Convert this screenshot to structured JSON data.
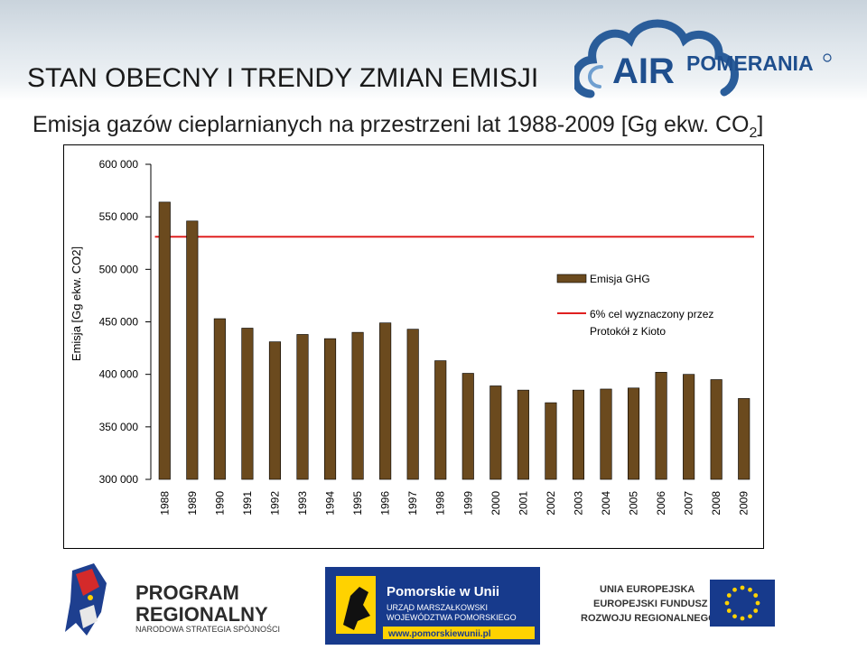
{
  "header": {
    "title": "STAN OBECNY I TRENDY ZMIAN EMISJI",
    "logo_text": "AIRPOMERANIA"
  },
  "subtitle": {
    "main": "Emisja gazów cieplarnianych na przestrzeni lat 1988-2009 [Gg ekw. CO",
    "sub": "2",
    "end": "]"
  },
  "chart_data": {
    "type": "bar",
    "title": "Emisja gazów cieplarnianych na przestrzeni lat 1988-2009 [Gg ekw. CO2]",
    "ylabel": "Emisja [Gg ekw. CO2]",
    "xlabel": "",
    "ylim": [
      300000,
      600000
    ],
    "yticks": [
      300000,
      350000,
      400000,
      450000,
      500000,
      550000,
      600000
    ],
    "ytick_labels": [
      "300 000",
      "350 000",
      "400 000",
      "450 000",
      "500 000",
      "550 000",
      "600 000"
    ],
    "categories": [
      "1988",
      "1989",
      "1990",
      "1991",
      "1992",
      "1993",
      "1994",
      "1995",
      "1996",
      "1997",
      "1998",
      "1999",
      "2000",
      "2001",
      "2002",
      "2003",
      "2004",
      "2005",
      "2006",
      "2007",
      "2008",
      "2009"
    ],
    "series": [
      {
        "name": "Emisja GHG",
        "color": "#6b4a1e",
        "values": [
          564000,
          546000,
          453000,
          444000,
          431000,
          438000,
          434000,
          440000,
          449000,
          443000,
          413000,
          401000,
          389000,
          385000,
          373000,
          385000,
          386000,
          387000,
          402000,
          400000,
          395000,
          377000
        ]
      }
    ],
    "reference_line": {
      "name": "6% cel wyznaczony przez Protokół z Kioto",
      "label_lines": [
        "6% cel wyznaczony przez",
        "Protokół z Kioto"
      ],
      "value": 531000,
      "color": "#e02020"
    },
    "legend": "right"
  },
  "footer": {
    "program_line1": "PROGRAM",
    "program_line2": "REGIONALNY",
    "program_line3": "NARODOWA STRATEGIA SPÓJNOŚCI",
    "pomorskie_title": "Pomorskie w Unii",
    "pomorskie_line1": "URZĄD MARSZAŁKOWSKI",
    "pomorskie_line2": "WOJEWÓDZTWA POMORSKIEGO",
    "pomorskie_url": "www.pomorskiewunii.pl",
    "eu_line1": "UNIA EUROPEJSKA",
    "eu_line2": "EUROPEJSKI FUNDUSZ",
    "eu_line3": "ROZWOJU REGIONALNEGO"
  }
}
